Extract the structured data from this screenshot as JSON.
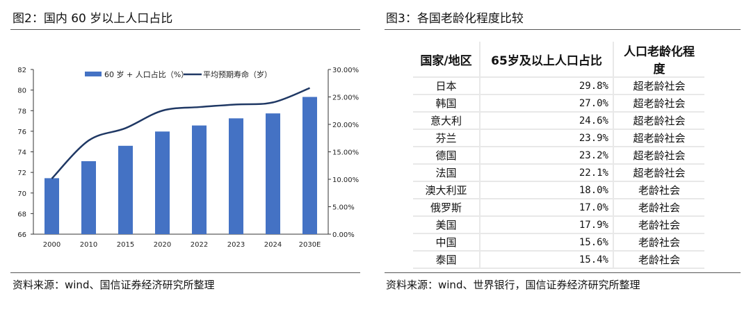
{
  "left": {
    "title": "图2：国内 60 岁以上人口占比",
    "source": "资料来源：wind、国信证券经济研究所整理"
  },
  "right": {
    "title": "图3：各国老龄化程度比较",
    "source": "资料来源：wind、世界银行，国信证券经济研究所整理",
    "headers": [
      "国家/地区",
      "65岁及以上人口占比",
      "人口老龄化程度"
    ],
    "rows": [
      [
        "日本",
        "29.8%",
        "超老龄社会"
      ],
      [
        "韩国",
        "27.0%",
        "超老龄社会"
      ],
      [
        "意大利",
        "24.6%",
        "超老龄社会"
      ],
      [
        "芬兰",
        "23.9%",
        "超老龄社会"
      ],
      [
        "德国",
        "23.2%",
        "超老龄社会"
      ],
      [
        "法国",
        "22.1%",
        "超老龄社会"
      ],
      [
        "澳大利亚",
        "18.0%",
        "老龄社会"
      ],
      [
        "俄罗斯",
        "17.0%",
        "老龄社会"
      ],
      [
        "美国",
        "17.9%",
        "老龄社会"
      ],
      [
        "中国",
        "15.6%",
        "老龄社会"
      ],
      [
        "泰国",
        "15.4%",
        "老龄社会"
      ]
    ]
  },
  "chart_data": {
    "type": "bar+line",
    "categories": [
      "2000",
      "2010",
      "2015",
      "2020",
      "2022",
      "2023",
      "2024",
      "2030E"
    ],
    "series": [
      {
        "name": "60 岁 + 人口占比（%）",
        "type": "bar",
        "axis": "right",
        "color": "#4472c4",
        "values": [
          10.2,
          13.3,
          16.1,
          18.7,
          19.8,
          21.1,
          22.0,
          25.0
        ]
      },
      {
        "name": "平均预期寿命（岁）",
        "type": "line",
        "axis": "left",
        "color": "#1f3864",
        "values": [
          71.4,
          75.1,
          76.3,
          78.0,
          78.35,
          78.6,
          78.8,
          80.2
        ]
      }
    ],
    "yleft": {
      "range": [
        66,
        82
      ],
      "ticks": [
        "66",
        "68",
        "70",
        "72",
        "74",
        "76",
        "78",
        "80",
        "82"
      ]
    },
    "yright": {
      "range": [
        0,
        30
      ],
      "ticks": [
        "0.00%",
        "5.00%",
        "10.00%",
        "15.00%",
        "20.00%",
        "25.00%",
        "30.00%"
      ]
    },
    "legend": "top-center"
  }
}
